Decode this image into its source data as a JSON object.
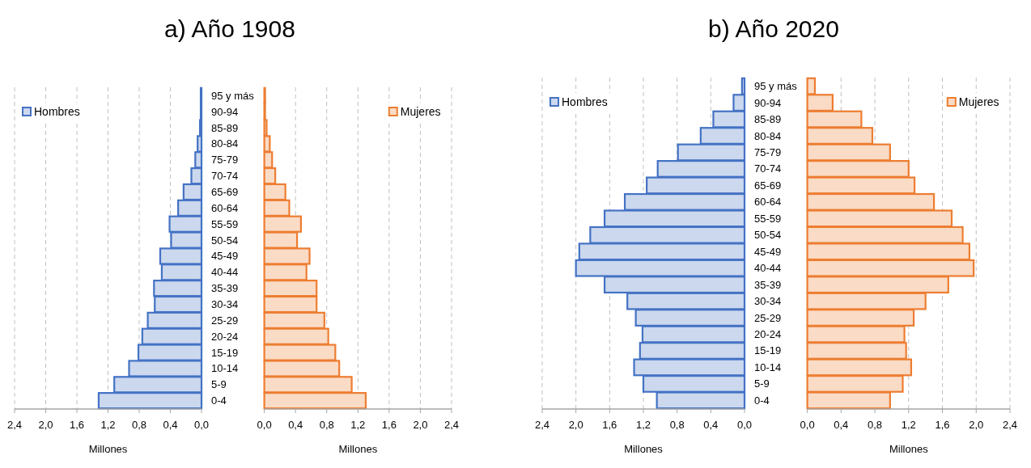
{
  "chart_data": [
    {
      "type": "bar",
      "orientation": "horizontal",
      "title": "a) Año 1908",
      "xlabel": "Millones",
      "categories": [
        "95 y más",
        "90-94",
        "85-89",
        "80-84",
        "75-79",
        "70-74",
        "65-69",
        "60-64",
        "55-59",
        "50-54",
        "45-49",
        "40-44",
        "35-39",
        "30-34",
        "25-29",
        "20-24",
        "15-19",
        "10-14",
        "5-9",
        "0-4"
      ],
      "series": [
        {
          "name": "Hombres",
          "color": "#4472c4",
          "values": [
            0.01,
            0.01,
            0.02,
            0.05,
            0.08,
            0.13,
            0.23,
            0.3,
            0.41,
            0.39,
            0.53,
            0.51,
            0.61,
            0.6,
            0.69,
            0.76,
            0.81,
            0.93,
            1.12,
            1.32
          ]
        }
      ],
      "xlim": [
        2.4,
        0
      ],
      "xticks": [
        {
          "value": 2.4,
          "label": "2,4"
        },
        {
          "value": 2.0,
          "label": "2,0"
        },
        {
          "value": 1.6,
          "label": "1,6"
        },
        {
          "value": 1.2,
          "label": "1,2"
        },
        {
          "value": 0.8,
          "label": "0,8"
        },
        {
          "value": 0.4,
          "label": "0,4"
        },
        {
          "value": 0,
          "label": "0,0"
        }
      ],
      "grid": "x",
      "legend": "top left"
    },
    {
      "type": "bar",
      "orientation": "horizontal",
      "xlabel": "Millones",
      "categories": [
        "95 y más",
        "90-94",
        "85-89",
        "80-84",
        "75-79",
        "70-74",
        "65-69",
        "60-64",
        "55-59",
        "50-54",
        "45-49",
        "40-44",
        "35-39",
        "30-34",
        "25-29",
        "20-24",
        "15-19",
        "10-14",
        "5-9",
        "0-4"
      ],
      "series": [
        {
          "name": "Mujeres",
          "color": "#ed7d31",
          "values": [
            0.01,
            0.01,
            0.03,
            0.07,
            0.1,
            0.14,
            0.27,
            0.32,
            0.47,
            0.42,
            0.58,
            0.54,
            0.67,
            0.67,
            0.77,
            0.82,
            0.91,
            0.96,
            1.12,
            1.3
          ]
        }
      ],
      "xlim": [
        0,
        2.4
      ],
      "xticks": [
        {
          "value": 0,
          "label": "0,0"
        },
        {
          "value": 0.4,
          "label": "0,4"
        },
        {
          "value": 0.8,
          "label": "0,8"
        },
        {
          "value": 1.2,
          "label": "1,2"
        },
        {
          "value": 1.6,
          "label": "1,6"
        },
        {
          "value": 2.0,
          "label": "2,0"
        },
        {
          "value": 2.4,
          "label": "2,4"
        }
      ],
      "grid": "x",
      "legend": "top right",
      "tick_labels": "x"
    },
    {
      "type": "bar",
      "orientation": "horizontal",
      "title": "b) Año 2020",
      "xlabel": "Millones",
      "categories": [
        "95 y más",
        "90-94",
        "85-89",
        "80-84",
        "75-79",
        "70-74",
        "65-69",
        "60-64",
        "55-59",
        "50-54",
        "45-49",
        "40-44",
        "35-39",
        "30-34",
        "25-29",
        "20-24",
        "15-19",
        "10-14",
        "5-9",
        "0-4"
      ],
      "series": [
        {
          "name": "Hombres",
          "color": "#4472c4",
          "values": [
            0.03,
            0.13,
            0.37,
            0.52,
            0.79,
            1.03,
            1.16,
            1.42,
            1.66,
            1.83,
            1.96,
            2.0,
            1.66,
            1.39,
            1.29,
            1.21,
            1.24,
            1.31,
            1.2,
            1.04
          ]
        }
      ],
      "xlim": [
        2.4,
        0
      ],
      "xticks": [
        {
          "value": 2.4,
          "label": "2,4"
        },
        {
          "value": 2.0,
          "label": "2,0"
        },
        {
          "value": 1.6,
          "label": "1,6"
        },
        {
          "value": 1.2,
          "label": "1,2"
        },
        {
          "value": 0.8,
          "label": "0,8"
        },
        {
          "value": 0.4,
          "label": "0,4"
        },
        {
          "value": 0,
          "label": "0,0"
        }
      ],
      "grid": "x",
      "legend": "top left"
    },
    {
      "type": "bar",
      "orientation": "horizontal",
      "xlabel": "Millones",
      "categories": [
        "95 y más",
        "90-94",
        "85-89",
        "80-84",
        "75-79",
        "70-74",
        "65-69",
        "60-64",
        "55-59",
        "50-54",
        "45-49",
        "40-44",
        "35-39",
        "30-34",
        "25-29",
        "20-24",
        "15-19",
        "10-14",
        "5-9",
        "0-4"
      ],
      "series": [
        {
          "name": "Mujeres",
          "color": "#ed7d31",
          "values": [
            0.09,
            0.3,
            0.64,
            0.77,
            0.98,
            1.2,
            1.27,
            1.5,
            1.71,
            1.84,
            1.92,
            1.97,
            1.67,
            1.4,
            1.26,
            1.15,
            1.17,
            1.23,
            1.13,
            0.98
          ]
        }
      ],
      "xlim": [
        0,
        2.4
      ],
      "xticks": [
        {
          "value": 0,
          "label": "0,0"
        },
        {
          "value": 0.4,
          "label": "0,4"
        },
        {
          "value": 0.8,
          "label": "0,8"
        },
        {
          "value": 1.2,
          "label": "1,2"
        },
        {
          "value": 1.6,
          "label": "1,6"
        },
        {
          "value": 2.0,
          "label": "2,0"
        },
        {
          "value": 2.4,
          "label": "2,4"
        }
      ],
      "grid": "x",
      "legend": "top right",
      "tick_labels": "x"
    }
  ]
}
